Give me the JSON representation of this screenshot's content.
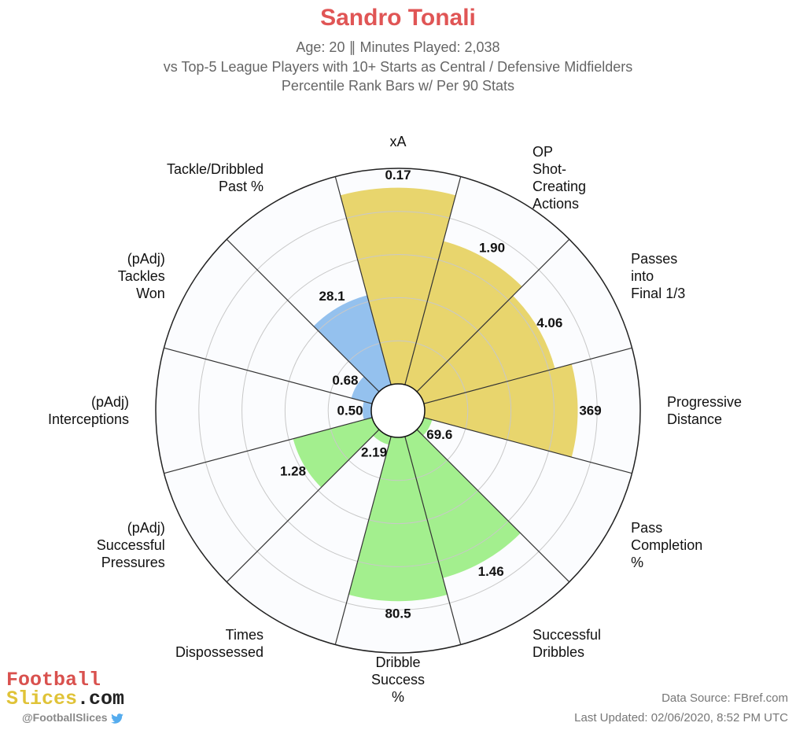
{
  "header": {
    "title": "Sandro Tonali",
    "title_color": "#e05555",
    "subtitle_1": "Age: 20 ∥ Minutes Played: 2,038",
    "subtitle_2": "vs Top-5 League Players with 10+ Starts as Central / Defensive Midfielders",
    "subtitle_3": "Percentile Rank Bars w/ Per 90 Stats"
  },
  "chart_data": {
    "type": "polar-bar",
    "orientation": "clockwise from top",
    "rmax": 100,
    "rings": [
      20,
      40,
      60,
      80,
      100
    ],
    "colors": {
      "attacking": "#e8d56d",
      "possession": "#a3ef8e",
      "defending": "#94c1ee"
    },
    "categories": [
      {
        "label": [
          "xA"
        ],
        "value": "0.17",
        "percentile": 91,
        "group": "attacking"
      },
      {
        "label": [
          "OP",
          "Shot-",
          "Creating",
          "Actions"
        ],
        "value": "1.90",
        "percentile": 69,
        "group": "attacking"
      },
      {
        "label": [
          "Passes",
          "into",
          "Final 1/3"
        ],
        "value": "4.06",
        "percentile": 63,
        "group": "attacking"
      },
      {
        "label": [
          "Progressive",
          "Distance"
        ],
        "value": "369",
        "percentile": 71,
        "group": "attacking"
      },
      {
        "label": [
          "Pass",
          "Completion",
          "%"
        ],
        "value": "69.6",
        "percentile": 4,
        "group": "possession"
      },
      {
        "label": [
          "Successful",
          "Dribbles"
        ],
        "value": "1.46",
        "percentile": 68,
        "group": "possession"
      },
      {
        "label": [
          "Dribble",
          "Success",
          "%"
        ],
        "value": "80.5",
        "percentile": 76,
        "group": "possession"
      },
      {
        "label": [
          "Times",
          "Dispossessed"
        ],
        "value": "2.19",
        "percentile": 4,
        "group": "possession"
      },
      {
        "label": [
          "(pAdj)",
          "Successful",
          "Pressures"
        ],
        "value": "1.28",
        "percentile": 38,
        "group": "possession"
      },
      {
        "label": [
          "(pAdj)",
          "Interceptions"
        ],
        "value": "0.50",
        "percentile": 4,
        "group": "defending"
      },
      {
        "label": [
          "(pAdj)",
          "Tackles",
          "Won"
        ],
        "value": "0.68",
        "percentile": 10,
        "group": "defending"
      },
      {
        "label": [
          "Tackle/Dribbled",
          "Past %"
        ],
        "value": "28.1",
        "percentile": 43,
        "group": "defending"
      }
    ]
  },
  "footer": {
    "brand_line1": "Football",
    "brand_line2_a": "Slices",
    "brand_line2_b": ".com",
    "brand_color1": "#d9514e",
    "brand_color2": "#e0c338",
    "brand_color3": "#222222",
    "handle": "@FootballSlices",
    "handle_icon": "bird-icon",
    "source": "Data Source: FBref.com",
    "updated": "Last Updated: 02/06/2020, 8:52 PM UTC"
  }
}
